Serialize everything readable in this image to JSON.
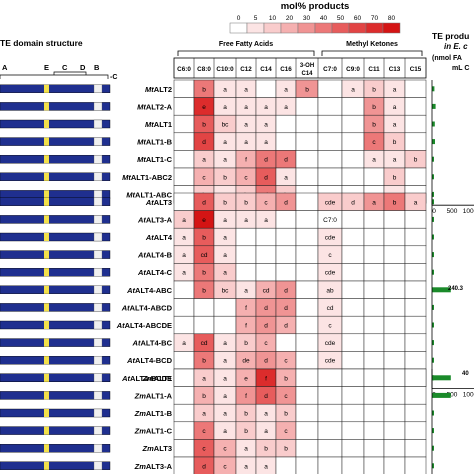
{
  "chart_data": {
    "type": "heatmap",
    "legend": {
      "title": "mol% products",
      "ticks": [
        "0",
        "5",
        "10",
        "20",
        "30",
        "40",
        "50",
        "60",
        "70",
        "80"
      ],
      "colors": [
        "#ffffff",
        "#fce4e4",
        "#f9cccc",
        "#f5b0b0",
        "#f09494",
        "#ec7878",
        "#e75c5c",
        "#e24444",
        "#dc2c2c",
        "#d41414"
      ]
    },
    "left_header": "TE domain structure",
    "domain_labels": [
      "A",
      "E",
      "C",
      "D",
      "B"
    ],
    "domain_suffix": "-C",
    "right_header": "TE produ",
    "right_sub1": "in E. c",
    "right_sub2": "(nmol FA",
    "right_sub3": "mL C",
    "group_ffa": "Free Fatty Acids",
    "group_mk": "Methyl Ketones",
    "columns": [
      "C6:0",
      "C8:0",
      "C10:0",
      "C12",
      "C14",
      "C16",
      "3-OH C14",
      "C7:0",
      "C9:0",
      "C11",
      "C13",
      "C15"
    ],
    "axis_ticks": [
      "0",
      "500",
      "1000"
    ],
    "off_scale_label": "240.3",
    "off_scale_label2": "40",
    "sections": [
      {
        "rows": [
          {
            "prefix": "Mt",
            "name": "ALT2",
            "cells": [
              "",
              "b",
              "a",
              "a",
              "",
              "a",
              "b",
              "",
              "a",
              "b",
              "a",
              ""
            ],
            "levels": [
              0,
              5,
              1,
              1,
              0,
              1,
              4,
              0,
              1,
              2,
              1,
              0
            ],
            "bar": 60
          },
          {
            "prefix": "Mt",
            "name": "ALT2-A",
            "cells": [
              "",
              "e",
              "a",
              "a",
              "a",
              "a",
              "",
              "",
              "",
              "b",
              "a",
              ""
            ],
            "levels": [
              0,
              8,
              1,
              1,
              1,
              1,
              0,
              0,
              0,
              4,
              1,
              0
            ],
            "bar": 90
          },
          {
            "prefix": "Mt",
            "name": "ALT1",
            "cells": [
              "",
              "b",
              "bc",
              "a",
              "a",
              "",
              "",
              "",
              "",
              "b",
              "a",
              ""
            ],
            "levels": [
              0,
              6,
              2,
              1,
              1,
              0,
              0,
              0,
              0,
              4,
              1,
              0
            ],
            "bar": 70
          },
          {
            "prefix": "Mt",
            "name": "ALT1-B",
            "cells": [
              "",
              "d",
              "a",
              "a",
              "a",
              "",
              "",
              "",
              "",
              "c",
              "b",
              ""
            ],
            "levels": [
              0,
              7,
              1,
              1,
              1,
              0,
              0,
              0,
              0,
              5,
              2,
              0
            ],
            "bar": 75
          },
          {
            "prefix": "Mt",
            "name": "ALT1-C",
            "cells": [
              "",
              "a",
              "a",
              "f",
              "d",
              "d",
              "",
              "",
              "",
              "a",
              "a",
              "b"
            ],
            "levels": [
              0,
              2,
              1,
              3,
              5,
              5,
              0,
              0,
              0,
              1,
              1,
              2
            ],
            "bar": 40
          },
          {
            "prefix": "Mt",
            "name": "ALT1-ABC2",
            "cells": [
              "",
              "c",
              "b",
              "c",
              "d",
              "a",
              "",
              "",
              "",
              "",
              "b",
              ""
            ],
            "levels": [
              0,
              3,
              2,
              3,
              6,
              1,
              0,
              0,
              0,
              0,
              2,
              0
            ],
            "bar": 20
          },
          {
            "prefix": "Mt",
            "name": "ALT1-ABC",
            "cells": [
              "",
              "abc",
              "a",
              "b",
              "d",
              "b",
              "",
              "",
              "",
              "",
              "a",
              ""
            ],
            "levels": [
              0,
              2,
              1,
              2,
              5,
              2,
              0,
              0,
              0,
              0,
              1,
              0
            ],
            "bar": 30
          }
        ]
      },
      {
        "rows": [
          {
            "prefix": "At",
            "name": "ALT3",
            "cells": [
              "",
              "d",
              "b",
              "b",
              "c",
              "d",
              "",
              "cde",
              "d",
              "a",
              "b",
              "a"
            ],
            "levels": [
              0,
              6,
              2,
              2,
              3,
              4,
              0,
              2,
              2,
              4,
              5,
              2
            ],
            "bar": 20
          },
          {
            "prefix": "At",
            "name": "ALT3-A",
            "cells": [
              "a",
              "e",
              "a",
              "a",
              "a",
              "",
              "",
              "C7:0",
              "",
              "",
              "",
              ""
            ],
            "levels": [
              2,
              9,
              1,
              1,
              1,
              0,
              0,
              0,
              0,
              0,
              0,
              0
            ],
            "bar": 15
          },
          {
            "prefix": "At",
            "name": "ALT4",
            "cells": [
              "a",
              "b",
              "a",
              "",
              "",
              "",
              "",
              "cde",
              "",
              "",
              "",
              ""
            ],
            "levels": [
              1,
              6,
              1,
              0,
              0,
              0,
              0,
              1,
              0,
              0,
              0,
              0
            ],
            "bar": 15
          },
          {
            "prefix": "At",
            "name": "ALT4-B",
            "cells": [
              "a",
              "cd",
              "a",
              "",
              "",
              "",
              "",
              "c",
              "",
              "",
              "",
              ""
            ],
            "levels": [
              1,
              6,
              1,
              0,
              0,
              0,
              0,
              1,
              0,
              0,
              0,
              0
            ],
            "bar": 15
          },
          {
            "prefix": "At",
            "name": "ALT4-C",
            "cells": [
              "a",
              "b",
              "a",
              "",
              "",
              "",
              "",
              "cde",
              "",
              "",
              "",
              ""
            ],
            "levels": [
              1,
              5,
              2,
              0,
              0,
              0,
              0,
              1,
              0,
              0,
              0,
              0
            ],
            "bar": 15
          },
          {
            "prefix": "At",
            "name": "ALT4-ABC",
            "cells": [
              "",
              "b",
              "bc",
              "a",
              "cd",
              "d",
              "",
              "ab",
              "",
              "",
              "",
              ""
            ],
            "levels": [
              0,
              5,
              2,
              1,
              3,
              4,
              0,
              1,
              0,
              0,
              0,
              0
            ],
            "bar": 470
          },
          {
            "prefix": "At",
            "name": "ALT4-ABCD",
            "cells": [
              "",
              "",
              "",
              "f",
              "d",
              "d",
              "",
              "cd",
              "",
              "",
              "",
              ""
            ],
            "levels": [
              0,
              0,
              0,
              3,
              4,
              4,
              0,
              1,
              0,
              0,
              0,
              0
            ],
            "bar": 25
          },
          {
            "prefix": "At",
            "name": "ALT4-ABCDE",
            "cells": [
              "",
              "",
              "",
              "f",
              "d",
              "d",
              "",
              "c",
              "",
              "",
              "",
              ""
            ],
            "levels": [
              0,
              0,
              0,
              3,
              4,
              3,
              0,
              1,
              0,
              0,
              0,
              0
            ],
            "bar": 25
          },
          {
            "prefix": "At",
            "name": "ALT4-BC",
            "cells": [
              "a",
              "cd",
              "a",
              "b",
              "c",
              "",
              "",
              "cde",
              "",
              "",
              "",
              ""
            ],
            "levels": [
              1,
              6,
              1,
              2,
              3,
              0,
              0,
              1,
              0,
              0,
              0,
              0
            ],
            "bar": 15
          },
          {
            "prefix": "At",
            "name": "ALT4-BCD",
            "cells": [
              "",
              "b",
              "a",
              "de",
              "d",
              "c",
              "",
              "cde",
              "",
              "",
              "",
              ""
            ],
            "levels": [
              0,
              5,
              1,
              3,
              4,
              3,
              0,
              1,
              0,
              0,
              0,
              0
            ],
            "bar": 25
          },
          {
            "prefix": "At",
            "name": "ALT4-BCDE",
            "cells": [
              "",
              "ab",
              "",
              "e",
              "d",
              "d",
              "",
              "cde",
              "",
              "",
              "",
              ""
            ],
            "levels": [
              0,
              4,
              0,
              3,
              4,
              3,
              0,
              1,
              0,
              0,
              0,
              0
            ],
            "bar": 25
          }
        ]
      },
      {
        "rows": [
          {
            "prefix": "Zm",
            "name": "ALT1",
            "cells": [
              "",
              "a",
              "a",
              "e",
              "f",
              "b",
              "",
              "",
              "",
              "",
              "",
              ""
            ],
            "levels": [
              0,
              2,
              1,
              3,
              8,
              3,
              0,
              0,
              0,
              0,
              0,
              0
            ],
            "bar": 470
          },
          {
            "prefix": "Zm",
            "name": "ALT1-A",
            "cells": [
              "",
              "b",
              "a",
              "f",
              "d",
              "c",
              "",
              "",
              "",
              "",
              "",
              ""
            ],
            "levels": [
              0,
              3,
              1,
              4,
              6,
              4,
              0,
              0,
              0,
              0,
              0,
              0
            ],
            "bar": 470
          },
          {
            "prefix": "Zm",
            "name": "ALT1-B",
            "cells": [
              "",
              "a",
              "a",
              "b",
              "a",
              "b",
              "",
              "",
              "",
              "",
              "",
              ""
            ],
            "levels": [
              0,
              2,
              1,
              2,
              1,
              2,
              0,
              0,
              0,
              0,
              0,
              0
            ],
            "bar": 15
          },
          {
            "prefix": "Zm",
            "name": "ALT1-C",
            "cells": [
              "",
              "c",
              "a",
              "b",
              "a",
              "c",
              "",
              "",
              "",
              "",
              "",
              ""
            ],
            "levels": [
              0,
              5,
              1,
              2,
              1,
              3,
              0,
              0,
              0,
              0,
              0,
              0
            ],
            "bar": 15
          },
          {
            "prefix": "Zm",
            "name": "ALT3",
            "cells": [
              "",
              "c",
              "c",
              "a",
              "b",
              "b",
              "",
              "",
              "",
              "",
              "",
              ""
            ],
            "levels": [
              0,
              6,
              3,
              1,
              2,
              2,
              0,
              0,
              0,
              0,
              0,
              0
            ],
            "bar": 15
          },
          {
            "prefix": "Zm",
            "name": "ALT3-A",
            "cells": [
              "",
              "d",
              "c",
              "a",
              "a",
              "",
              "",
              "",
              "",
              "",
              "",
              ""
            ],
            "levels": [
              0,
              6,
              3,
              1,
              1,
              0,
              0,
              0,
              0,
              0,
              0,
              0
            ],
            "bar": 15
          },
          {
            "prefix": "Zm",
            "name": "ALT3-C",
            "cells": [
              "",
              "a",
              "c",
              "d",
              "f",
              "a",
              "",
              "",
              "",
              "",
              "",
              ""
            ],
            "levels": [
              0,
              2,
              3,
              4,
              7,
              2,
              0,
              0,
              0,
              0,
              0,
              0
            ],
            "bar": 15
          }
        ]
      }
    ]
  }
}
